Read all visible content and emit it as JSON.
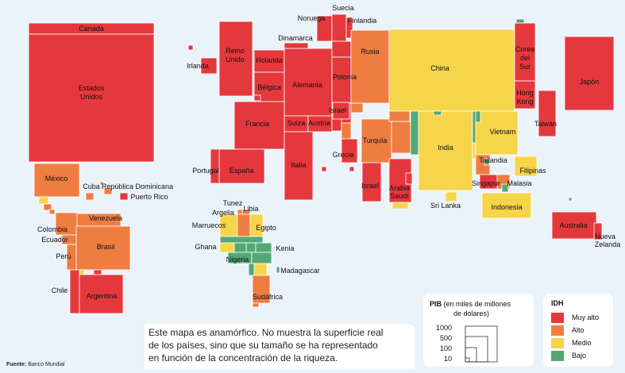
{
  "idh_colors": {
    "muy_alto": "#e5383d",
    "alto": "#ef7d42",
    "medio": "#f7d54a",
    "bajo": "#53a874"
  },
  "regions": [
    {
      "name": "Canadá",
      "idh": "muy_alto"
    },
    {
      "name": "Estados Unidos",
      "idh": "muy_alto"
    },
    {
      "name": "México",
      "idh": "alto"
    },
    {
      "name": "Cuba",
      "idh": "alto"
    },
    {
      "name": "República Dominicana",
      "idh": "alto"
    },
    {
      "name": "Puerto Rico",
      "idh": "muy_alto"
    },
    {
      "name": "Venezuela",
      "idh": "alto"
    },
    {
      "name": "Colombia",
      "idh": "alto"
    },
    {
      "name": "Ecuador",
      "idh": "alto"
    },
    {
      "name": "Perú",
      "idh": "alto"
    },
    {
      "name": "Brasil",
      "idh": "alto"
    },
    {
      "name": "Chile",
      "idh": "muy_alto"
    },
    {
      "name": "Argentina",
      "idh": "muy_alto"
    },
    {
      "name": "Irlanda",
      "idh": "muy_alto"
    },
    {
      "name": "Reino Unido",
      "idh": "muy_alto"
    },
    {
      "name": "Holanda",
      "idh": "muy_alto"
    },
    {
      "name": "Bélgica",
      "idh": "muy_alto"
    },
    {
      "name": "Alemania",
      "idh": "muy_alto"
    },
    {
      "name": "Francia",
      "idh": "muy_alto"
    },
    {
      "name": "Suiza",
      "idh": "muy_alto"
    },
    {
      "name": "Austria",
      "idh": "muy_alto"
    },
    {
      "name": "Italia",
      "idh": "muy_alto"
    },
    {
      "name": "España",
      "idh": "muy_alto"
    },
    {
      "name": "Portugal",
      "idh": "muy_alto"
    },
    {
      "name": "Noruega",
      "idh": "muy_alto"
    },
    {
      "name": "Suecia",
      "idh": "muy_alto"
    },
    {
      "name": "Finlandia",
      "idh": "muy_alto"
    },
    {
      "name": "Dinamarca",
      "idh": "muy_alto"
    },
    {
      "name": "Polonia",
      "idh": "muy_alto"
    },
    {
      "name": "Rusia",
      "idh": "alto"
    },
    {
      "name": "Grecia",
      "idh": "muy_alto"
    },
    {
      "name": "Turquía",
      "idh": "alto"
    },
    {
      "name": "Israel",
      "idh": "muy_alto"
    },
    {
      "name": "Arabia Saudí",
      "idh": "muy_alto"
    },
    {
      "name": "China",
      "idh": "medio"
    },
    {
      "name": "India",
      "idh": "medio"
    },
    {
      "name": "Corea del Sur",
      "idh": "muy_alto"
    },
    {
      "name": "Japón",
      "idh": "muy_alto"
    },
    {
      "name": "Hong Kong",
      "idh": "muy_alto"
    },
    {
      "name": "Taiwán",
      "idh": "muy_alto"
    },
    {
      "name": "Vietnam",
      "idh": "medio"
    },
    {
      "name": "Tailandia",
      "idh": "alto"
    },
    {
      "name": "Filipinas",
      "idh": "medio"
    },
    {
      "name": "Singapur",
      "idh": "muy_alto"
    },
    {
      "name": "Malasia",
      "idh": "alto"
    },
    {
      "name": "Indonesia",
      "idh": "medio"
    },
    {
      "name": "Sri Lanka",
      "idh": "alto"
    },
    {
      "name": "Australia",
      "idh": "muy_alto"
    },
    {
      "name": "Nueva Zelanda",
      "idh": "muy_alto"
    },
    {
      "name": "Marruecos",
      "idh": "medio"
    },
    {
      "name": "Argelia",
      "idh": "alto"
    },
    {
      "name": "Túnez",
      "idh": "alto"
    },
    {
      "name": "Libia",
      "idh": "alto"
    },
    {
      "name": "Egipto",
      "idh": "medio"
    },
    {
      "name": "Ghana",
      "idh": "medio"
    },
    {
      "name": "Nigeria",
      "idh": "bajo"
    },
    {
      "name": "Kenia",
      "idh": "medio"
    },
    {
      "name": "Madagascar",
      "idh": "bajo"
    },
    {
      "name": "Sudáfrica",
      "idh": "alto"
    }
  ],
  "labels": {
    "canada": "Canadá",
    "eeuu_1": "Estados",
    "eeuu_2": "Unidos",
    "mexico": "México",
    "cuba": "Cuba",
    "rep_dom": "República Dominicana",
    "puerto_rico": "Puerto Rico",
    "venezuela": "Venezuela",
    "colombia": "Colombia",
    "ecuador": "Ecuador",
    "peru": "Perú",
    "brasil": "Brasil",
    "chile": "Chile",
    "argentina": "Argentina",
    "irlanda": "Irlanda",
    "reino_1": "Reino",
    "reino_2": "Unido",
    "holanda": "Holanda",
    "belgica": "Bélgica",
    "alemania": "Alemania",
    "francia": "Francia",
    "suiza": "Suiza",
    "austria": "Austria",
    "italia": "Italia",
    "espana": "España",
    "portugal": "Portugal",
    "noruega": "Noruega",
    "suecia": "Suecia",
    "finlandia": "Finlandia",
    "dinamarca": "Dinamarca",
    "polonia": "Polonia",
    "rusia": "Rusia",
    "grecia": "Grecia",
    "turquia": "Turquía",
    "israel_n": "Israel",
    "israel_s": "Israel",
    "arabia_1": "Arabia",
    "arabia_2": "Saudí",
    "china": "China",
    "india": "India",
    "corea_1": "Corea",
    "corea_2": "del",
    "corea_3": "Sur",
    "japon": "Japón",
    "hk_1": "Hong",
    "hk_2": "Kong",
    "taiwan": "Taiwán",
    "vietnam": "Vietnam",
    "tailandia": "Tailandia",
    "filipinas": "Filipinas",
    "singapur": "Singapur",
    "malasia": "Malasia",
    "indonesia": "Indonesia",
    "sri_lanka": "Sri Lanka",
    "australia": "Australia",
    "nz_1": "Nueva",
    "nz_2": "Zelanda",
    "marruecos": "Marruecos",
    "argelia": "Argelia",
    "tunez": "Tunez",
    "libia": "Libia",
    "egipto": "Egipto",
    "ghana": "Ghana",
    "nigeria": "Nigeria",
    "kenia": "Kenia",
    "madagascar": "Madagascar",
    "sudafrica": "Sudáfrica"
  },
  "legend_pib": {
    "title_bold": "PIB",
    "title_rest": " (en miles de millones",
    "title_line2": "de dolares)",
    "values": [
      "1000",
      "500",
      "100",
      "10"
    ]
  },
  "legend_idh": {
    "title": "IDH",
    "items": [
      {
        "label": "Muy alto",
        "color": "#e5383d"
      },
      {
        "label": "Alto",
        "color": "#ef7d42"
      },
      {
        "label": "Medio",
        "color": "#f7d54a"
      },
      {
        "label": "Bajo",
        "color": "#53a874"
      }
    ]
  },
  "note": {
    "line1": "Este mapa es anamórfico. No muestra la superficie real",
    "line2": "de los países, sino que su tamaño se ha representado",
    "line3": "en función de la concentración de la riqueza."
  },
  "source": {
    "label": "Fuente:",
    "text": "Banco Mundial"
  }
}
